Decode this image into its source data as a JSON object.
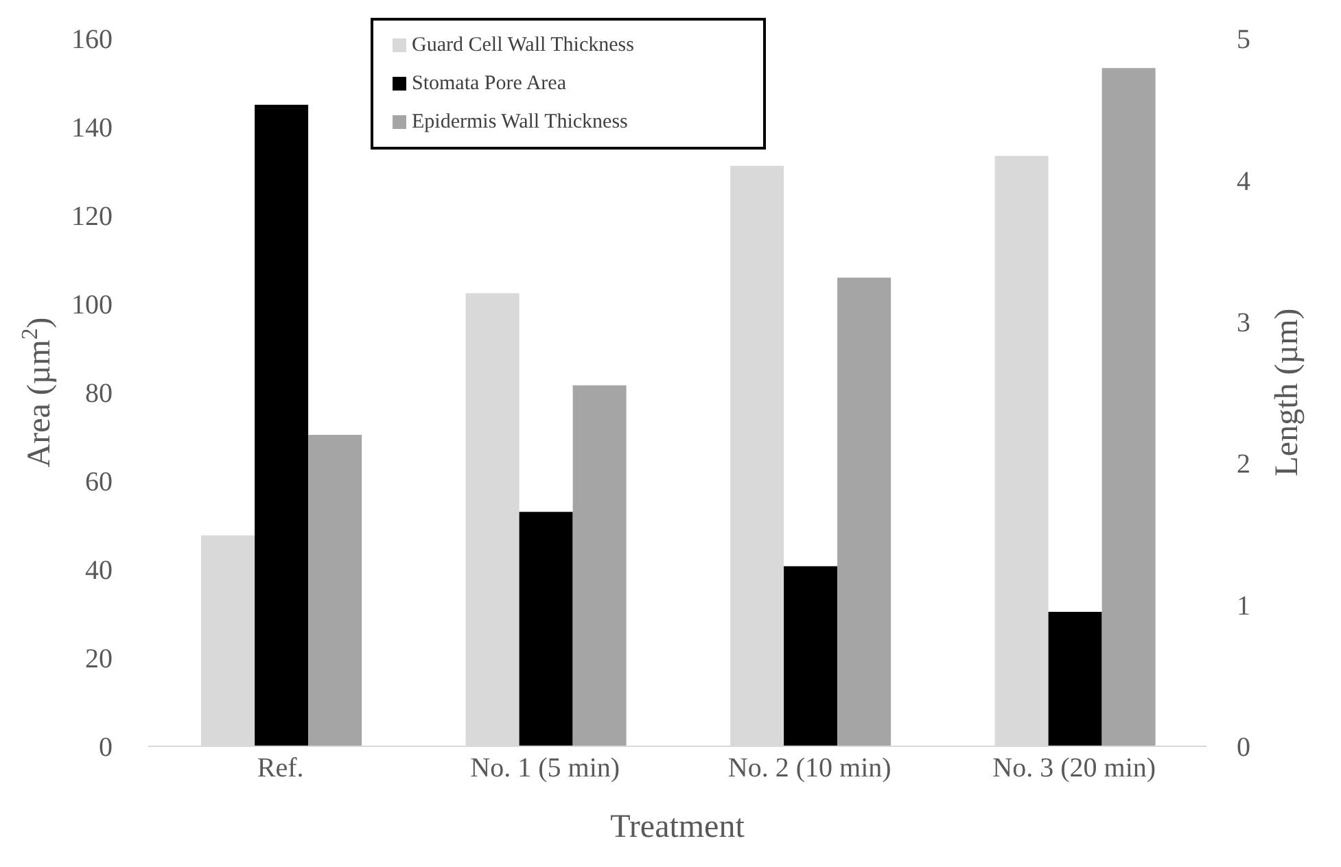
{
  "chart_data": {
    "type": "bar",
    "xlabel": "Treatment",
    "ylabel": "Area (µm$^{2}$)",
    "y2label": "Length (µm)",
    "categories": [
      "Ref.",
      "No. 1 (5 min)",
      "No. 2 (10 min)",
      "No. 3 (20 min)"
    ],
    "series": [
      {
        "name": "Guard Cell Wall Thickness",
        "color": "#d9d9d9",
        "axis": "y2",
        "values": [
          1.49,
          3.2,
          4.1,
          4.17
        ]
      },
      {
        "name": "Stomata Pore Area",
        "color": "#000000",
        "values": [
          145,
          53,
          40.7,
          30.4
        ]
      },
      {
        "name": "Epidermis Wall Thickness",
        "color": "#a5a5a5",
        "axis": "y2",
        "values": [
          2.2,
          2.55,
          3.31,
          4.79
        ]
      }
    ],
    "ylim": [
      0,
      160
    ],
    "yticks": [
      0,
      20,
      40,
      60,
      80,
      100,
      120,
      140,
      160
    ],
    "y2lim": [
      0,
      5
    ],
    "y2ticks": [
      0,
      1,
      2,
      3,
      4,
      5
    ],
    "grid": false,
    "legend": "top"
  }
}
